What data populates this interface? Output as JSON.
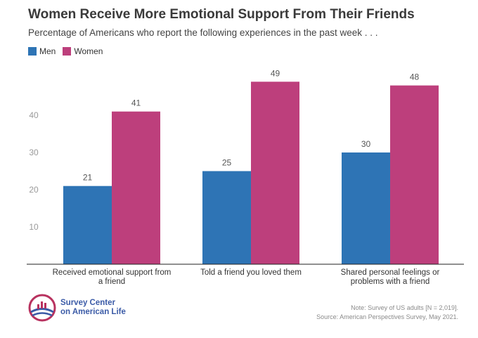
{
  "header": {
    "title": "Women Receive More Emotional Support From Their Friends",
    "subtitle": "Percentage of Americans who report the following experiences in the past week . . ."
  },
  "legend": [
    {
      "label": "Men",
      "color": "#2e74b5"
    },
    {
      "label": "Women",
      "color": "#bd3f7c"
    }
  ],
  "chart_data": {
    "type": "bar",
    "title": "Women Receive More Emotional Support From Their Friends",
    "categories": [
      [
        "Received emotional support from",
        "a friend"
      ],
      [
        "Told a friend you loved them"
      ],
      [
        "Shared personal feelings or",
        "problems with a friend"
      ]
    ],
    "series": [
      {
        "name": "Men",
        "values": [
          21,
          25,
          30
        ],
        "color": "#2e74b5"
      },
      {
        "name": "Women",
        "values": [
          41,
          49,
          48
        ],
        "color": "#bd3f7c"
      }
    ],
    "yticks": [
      10,
      20,
      30,
      40
    ],
    "ylim": [
      0,
      50
    ],
    "xlabel": "",
    "ylabel": "",
    "grid": false,
    "legend_position": "top-left"
  },
  "logo": {
    "line1": "Survey Center",
    "line2": "on American Life"
  },
  "notes": {
    "line1": "Note: Survey of US adults [N = 2,019].",
    "line2": "Source: American Perspectives Survey, May 2021."
  }
}
